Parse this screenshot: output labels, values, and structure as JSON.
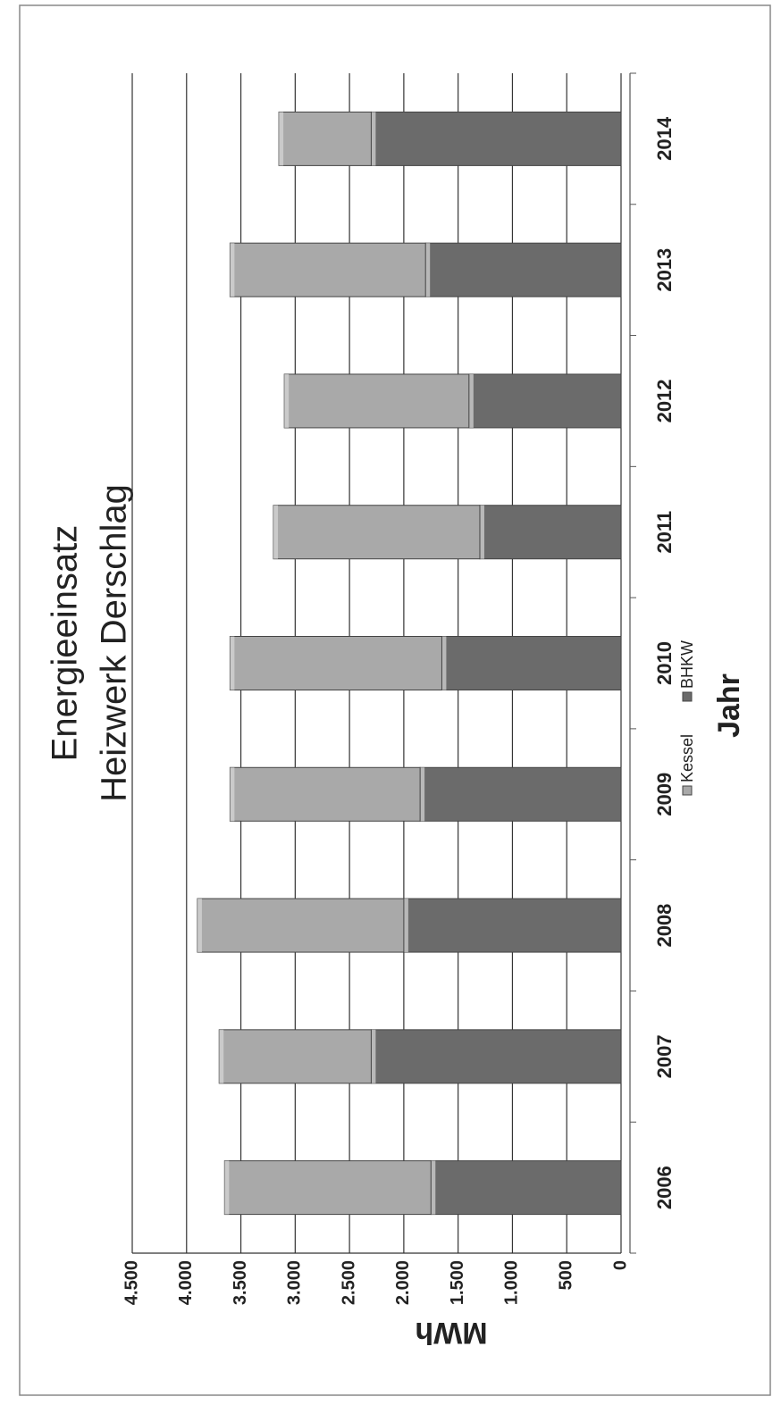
{
  "chart_data": {
    "type": "stacked_bar",
    "title": "Energieeinsatz",
    "subtitle": "Heizwerk Derschlag",
    "x_label": "Jahr",
    "y_label": "MWh",
    "categories": [
      "2006",
      "2007",
      "2008",
      "2009",
      "2010",
      "2011",
      "2012",
      "2013",
      "2014"
    ],
    "series": [
      {
        "name": "BHKW",
        "color": "#6b6b6b",
        "values": [
          1750,
          2300,
          2000,
          1850,
          1650,
          1300,
          1400,
          1800,
          2300
        ]
      },
      {
        "name": "Kessel",
        "color": "#a9a9a9",
        "values": [
          1900,
          1400,
          1900,
          1750,
          1950,
          1900,
          1700,
          1800,
          850
        ]
      }
    ],
    "ylim": [
      0,
      4500
    ],
    "yticks": [
      0,
      500,
      {
        "value": 1000,
        "label": "1.000"
      },
      {
        "value": 1500,
        "label": "1.500"
      },
      {
        "value": 2000,
        "label": "2.000"
      },
      {
        "value": 2500,
        "label": "2.500"
      },
      {
        "value": 3000,
        "label": "3.000"
      },
      {
        "value": 3500,
        "label": "3.500"
      },
      {
        "value": 4000,
        "label": "4.000"
      },
      {
        "value": 4500,
        "label": "4.500"
      }
    ],
    "grid": true,
    "legend": "bottom"
  }
}
